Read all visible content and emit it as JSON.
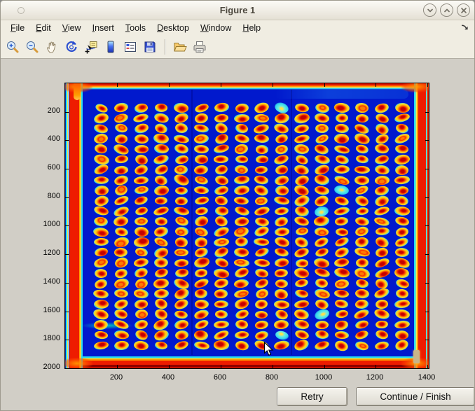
{
  "window": {
    "title": "Figure 1"
  },
  "menu": {
    "items": [
      {
        "label": "File",
        "underline": 0
      },
      {
        "label": "Edit",
        "underline": 0
      },
      {
        "label": "View",
        "underline": 0
      },
      {
        "label": "Insert",
        "underline": 0
      },
      {
        "label": "Tools",
        "underline": 0
      },
      {
        "label": "Desktop",
        "underline": 0
      },
      {
        "label": "Window",
        "underline": 0
      },
      {
        "label": "Help",
        "underline": 0
      }
    ]
  },
  "toolbar": {
    "buttons": [
      "zoom-in",
      "zoom-out",
      "pan",
      "rotate-3d",
      "data-cursor",
      "insert-colorbar",
      "insert-legend",
      "save-figure",
      "open-file",
      "print-figure"
    ]
  },
  "actions": {
    "retry_label": "Retry",
    "continue_label": "Continue / Finish"
  },
  "colors": {
    "chrome_bg": "#F0EDE2",
    "figure_bg": "#D1CEC6",
    "image_blue": "#0119CD",
    "border_red": "#EE1C00",
    "ring_yellow": "#FFD21E",
    "halo_cyan": "#2FD4F0"
  },
  "chart_data": {
    "type": "heatmap",
    "title": "",
    "xlabel": "",
    "ylabel": "",
    "x_ticks": [
      200,
      400,
      600,
      800,
      1000,
      1200,
      1400
    ],
    "y_ticks": [
      200,
      400,
      600,
      800,
      1000,
      1200,
      1400,
      1600,
      1800,
      2000
    ],
    "x_range": [
      0,
      1410
    ],
    "y_range": [
      0,
      2010
    ],
    "y_axis_direction": "reverse",
    "colormap": "jet",
    "legend": false,
    "grid": false,
    "description": "Jet-colormapped scan of a spotted assay plate: 24 rows x 16 columns of spots (red cores, orange-yellow rings, cyan halos) on a deep blue background, with saturated red/orange bands along all four scan edges.",
    "spot_grid": {
      "rows": 24,
      "cols": 16,
      "first_center_data": [
        139,
        172
      ],
      "spacing_data": [
        77.5,
        72.5
      ]
    }
  }
}
